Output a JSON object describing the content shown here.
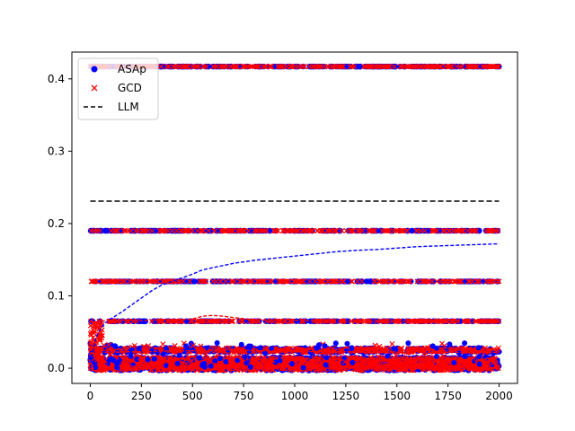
{
  "chart_data": {
    "type": "scatter",
    "xlim": [
      -90,
      2090
    ],
    "ylim": [
      -0.021,
      0.437
    ],
    "x_ticks": [
      0,
      250,
      500,
      750,
      1000,
      1250,
      1500,
      1750,
      2000
    ],
    "y_ticks": [
      0.0,
      0.1,
      0.2,
      0.3,
      0.4
    ],
    "x_tick_labels": [
      "0",
      "250",
      "500",
      "750",
      "1000",
      "1250",
      "1500",
      "1750",
      "2000"
    ],
    "y_tick_labels": [
      "0.0",
      "0.1",
      "0.2",
      "0.3",
      "0.4"
    ],
    "grid": false,
    "legend": {
      "location": "upper-left",
      "entries": [
        {
          "label": "ASAp",
          "marker": "circle",
          "color": "#0000ff"
        },
        {
          "label": "GCD",
          "marker": "x",
          "color": "#ff0000"
        },
        {
          "label": "LLM",
          "marker": "dashed-line",
          "color": "#000000"
        }
      ]
    },
    "x_range": [
      0,
      2000
    ],
    "series": [
      {
        "name": "ASAp",
        "kind": "points",
        "color": "#0000ff",
        "levels": [
          0.0,
          0.005,
          0.012,
          0.025,
          0.065,
          0.12,
          0.19,
          0.417
        ]
      },
      {
        "name": "GCD",
        "kind": "points",
        "color": "#ff0000",
        "levels": [
          0.0,
          0.005,
          0.012,
          0.025,
          0.065,
          0.12,
          0.19,
          0.417
        ]
      },
      {
        "name": "LLM",
        "kind": "line",
        "color": "#000000",
        "style": "dashed",
        "x": [
          0,
          2000
        ],
        "y": [
          0.231,
          0.231
        ]
      },
      {
        "kind": "line",
        "color": "#0000ff",
        "style": "dashed",
        "x": [
          0,
          10,
          25,
          50,
          75,
          100,
          150,
          200,
          250,
          300,
          350,
          400,
          450,
          500,
          550,
          600,
          700,
          800,
          900,
          1000,
          1100,
          1200,
          1300,
          1400,
          1500,
          1600,
          1700,
          1800,
          1900,
          2000
        ],
        "y": [
          0.0,
          0.02,
          0.04,
          0.055,
          0.063,
          0.068,
          0.077,
          0.087,
          0.097,
          0.107,
          0.115,
          0.12,
          0.125,
          0.13,
          0.136,
          0.139,
          0.145,
          0.149,
          0.152,
          0.155,
          0.158,
          0.161,
          0.163,
          0.164,
          0.166,
          0.168,
          0.169,
          0.17,
          0.171,
          0.172
        ]
      },
      {
        "kind": "line",
        "color": "#ff0000",
        "style": "dashed",
        "x": [
          0,
          15,
          30,
          50,
          100,
          200,
          300,
          400,
          500,
          550,
          600,
          650,
          700,
          800,
          900,
          1000,
          1200,
          1400,
          1600,
          1800,
          2000
        ],
        "y": [
          0.025,
          0.045,
          0.06,
          0.065,
          0.066,
          0.066,
          0.066,
          0.066,
          0.068,
          0.072,
          0.073,
          0.072,
          0.07,
          0.067,
          0.066,
          0.066,
          0.065,
          0.065,
          0.065,
          0.065,
          0.065
        ]
      },
      {
        "kind": "line",
        "color": "#ff0000",
        "style": "dashed",
        "x": [
          0,
          50,
          100,
          200,
          300,
          400,
          500,
          600,
          700,
          800,
          900,
          1000,
          1200,
          1400,
          1600,
          1800,
          2000
        ],
        "y": [
          0.03,
          0.022,
          0.022,
          0.023,
          0.023,
          0.024,
          0.024,
          0.025,
          0.025,
          0.024,
          0.024,
          0.023,
          0.023,
          0.022,
          0.022,
          0.022,
          0.022
        ]
      }
    ]
  }
}
